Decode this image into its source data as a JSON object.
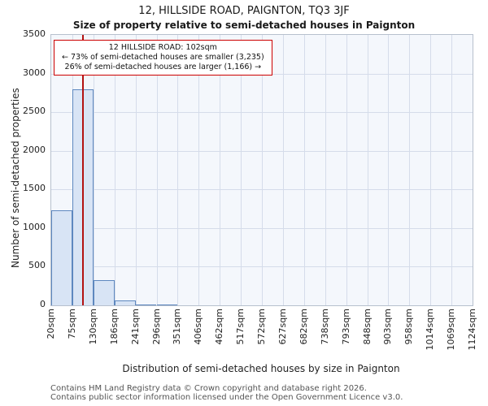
{
  "title": "12, HILLSIDE ROAD, PAIGNTON, TQ3 3JF",
  "subtitle": "Size of property relative to semi-detached houses in Paignton",
  "annotation": {
    "line1": "12 HILLSIDE ROAD: 102sqm",
    "line2": "← 73% of semi-detached houses are smaller (3,235)",
    "line3": "26% of semi-detached houses are larger (1,166) →"
  },
  "footer": {
    "line1": "Contains HM Land Registry data © Crown copyright and database right 2026.",
    "line2": "Contains public sector information licensed under the Open Government Licence v3.0."
  },
  "chart_data": {
    "type": "bar",
    "title": "12, HILLSIDE ROAD, PAIGNTON, TQ3 3JF",
    "subtitle": "Size of property relative to semi-detached houses in Paignton",
    "xlabel": "Distribution of semi-detached houses by size in Paignton",
    "ylabel": "Number of semi-detached properties",
    "categories": [
      "20sqm",
      "75sqm",
      "130sqm",
      "186sqm",
      "241sqm",
      "296sqm",
      "351sqm",
      "406sqm",
      "462sqm",
      "517sqm",
      "572sqm",
      "627sqm",
      "682sqm",
      "738sqm",
      "793sqm",
      "848sqm",
      "903sqm",
      "958sqm",
      "1014sqm",
      "1069sqm",
      "1124sqm"
    ],
    "bin_edges_sqm": [
      20,
      75,
      130,
      186,
      241,
      296,
      351,
      406,
      462,
      517,
      572,
      627,
      682,
      738,
      793,
      848,
      903,
      958,
      1014,
      1069,
      1124
    ],
    "values": [
      1230,
      2800,
      330,
      60,
      15,
      10,
      0,
      0,
      0,
      0,
      0,
      0,
      0,
      0,
      0,
      0,
      0,
      0,
      0,
      0
    ],
    "ylim": [
      0,
      3500
    ],
    "ytick_step": 500,
    "grid": true,
    "legend": "none",
    "marker": {
      "value_sqm": 102,
      "label": "12 HILLSIDE ROAD: 102sqm",
      "color": "#b31212"
    },
    "colors": {
      "bar_fill": "#d8e4f5",
      "bar_border": "#5e88bf",
      "grid": "#d5dcea",
      "annotation_border": "#cc0000"
    }
  }
}
